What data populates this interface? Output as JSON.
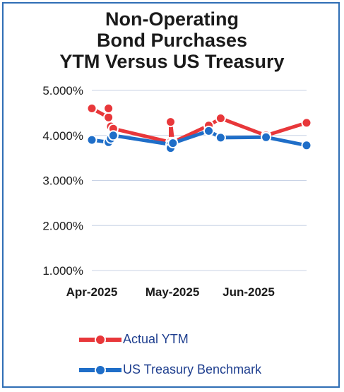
{
  "chart_data": {
    "type": "line",
    "title_lines": [
      "Non-Operating",
      "Bond Purchases",
      "YTM Versus US Treasury"
    ],
    "xlabel": "",
    "ylabel": "",
    "x_tick_labels": [
      "Apr-2025",
      "May-2025",
      "Jun-2025"
    ],
    "y_tick_labels": [
      "1.000%",
      "2.000%",
      "3.000%",
      "4.000%",
      "5.000%"
    ],
    "y_ticks": [
      1,
      2,
      3,
      4,
      5
    ],
    "ylim": [
      1,
      5
    ],
    "x_domain": [
      "2025-04-01",
      "2025-06-30"
    ],
    "x_tick_dates": [
      "2025-04-01",
      "2025-05-01",
      "2025-06-01"
    ],
    "grid": true,
    "legend_position": "bottom",
    "series": [
      {
        "name": "Actual YTM",
        "color": "#e8373a",
        "points": [
          {
            "x": "2025-04-01",
            "y": 4.6
          },
          {
            "x": "2025-04-08",
            "y": 4.4
          },
          {
            "x": "2025-04-08",
            "y": 4.6
          },
          {
            "x": "2025-04-09",
            "y": 4.2
          },
          {
            "x": "2025-04-10",
            "y": 4.15
          },
          {
            "x": "2025-05-04",
            "y": 3.85
          },
          {
            "x": "2025-05-04",
            "y": 4.3
          },
          {
            "x": "2025-05-05",
            "y": 3.85
          },
          {
            "x": "2025-05-20",
            "y": 4.22
          },
          {
            "x": "2025-05-25",
            "y": 4.38
          },
          {
            "x": "2025-06-13",
            "y": 4.0
          },
          {
            "x": "2025-06-30",
            "y": 4.28
          }
        ]
      },
      {
        "name": "US Treasury Benchmark",
        "color": "#1f6ec8",
        "points": [
          {
            "x": "2025-04-01",
            "y": 3.9
          },
          {
            "x": "2025-04-08",
            "y": 3.85
          },
          {
            "x": "2025-04-09",
            "y": 3.93
          },
          {
            "x": "2025-04-10",
            "y": 4.0
          },
          {
            "x": "2025-05-04",
            "y": 3.8
          },
          {
            "x": "2025-05-04",
            "y": 3.72
          },
          {
            "x": "2025-05-05",
            "y": 3.83
          },
          {
            "x": "2025-05-20",
            "y": 4.1
          },
          {
            "x": "2025-05-25",
            "y": 3.95
          },
          {
            "x": "2025-06-13",
            "y": 3.96
          },
          {
            "x": "2025-06-30",
            "y": 3.78
          }
        ]
      }
    ]
  }
}
